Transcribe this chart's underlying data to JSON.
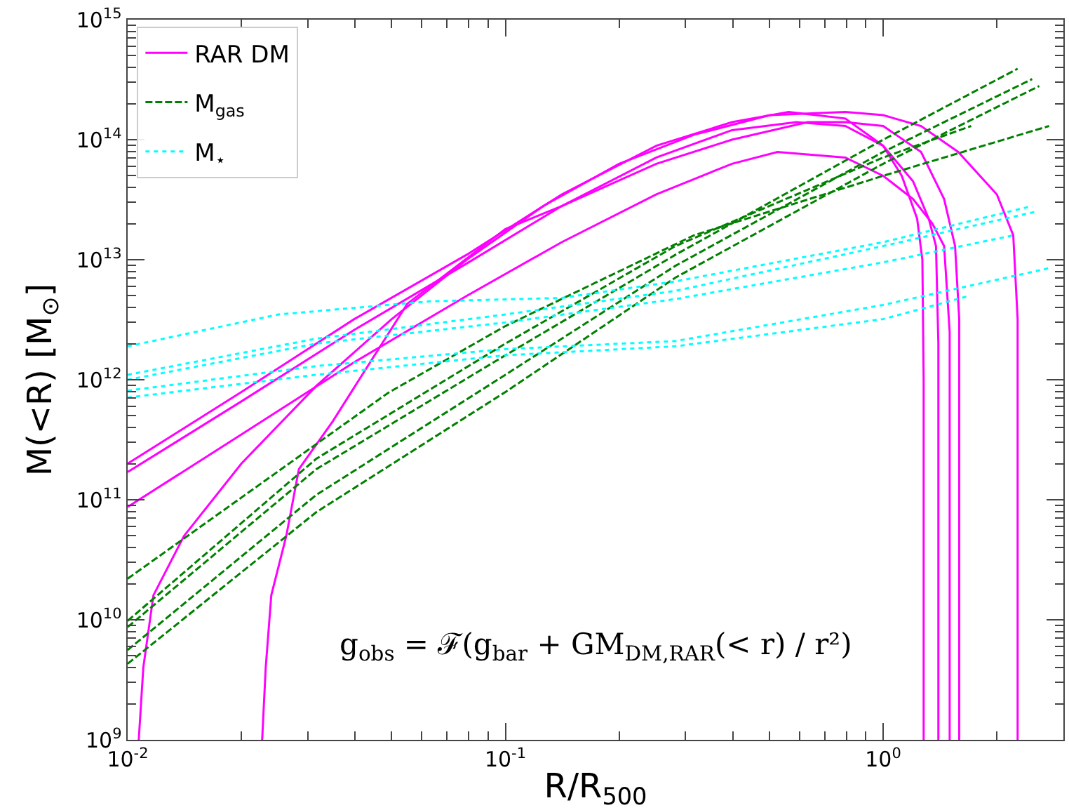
{
  "chart_data": {
    "type": "line",
    "xlabel": "R/R$_{500}$",
    "ylabel": "M(<R) [M$_{⊙}$]",
    "log": "xy",
    "grid": false,
    "legend": "top left",
    "marker": "none",
    "xlim": [
      0.01,
      3.0
    ],
    "xticks": [
      {
        "value": 0.01,
        "label": "10$^{-2}$"
      },
      {
        "value": 0.1,
        "label": "10$^{-1}$"
      },
      {
        "value": 1,
        "label": "10$^{0}$"
      }
    ],
    "ylim": [
      1000000000.0,
      1000000000000000.0
    ],
    "yticks": [
      {
        "value": 1000000000.0,
        "label": "10$^{9}$"
      },
      {
        "value": 10000000000.0,
        "label": "10$^{10}$"
      },
      {
        "value": 100000000000.0,
        "label": "10$^{11}$"
      },
      {
        "value": 1000000000000.0,
        "label": "10$^{12}$"
      },
      {
        "value": 10000000000000.0,
        "label": "10$^{13}$"
      },
      {
        "value": 100000000000000.0,
        "label": "10$^{14}$"
      },
      {
        "value": 1000000000000000.0,
        "label": "10$^{15}$"
      }
    ],
    "annotations": [
      "g$_{obs}$ = ℱ(g$_{bar}$ + GM$_{DM,RAR}$(< r) / r²)"
    ],
    "series": [
      {
        "name": "RAR DM",
        "color": "#ff00ff",
        "line_style": "solid",
        "x": [
          0.01,
          0.02,
          0.0398,
          0.079,
          0.141,
          0.251,
          0.398,
          0.562,
          0.794,
          1,
          1.12,
          1.23,
          1.27,
          1.28,
          1.28
        ],
        "values": [
          200000000000.0,
          790000000000.0,
          3200000000000.0,
          11000000000000.0,
          35000000000000.0,
          89000000000000.0,
          140000000000000.0,
          170000000000000.0,
          150000000000000.0,
          89000000000000.0,
          50000000000000.0,
          22000000000000.0,
          10000000000000.0,
          1000000000000.0,
          1000000000.0
        ]
      },
      {
        "color": "#ff00ff",
        "line_style": "solid",
        "x": [
          0.01,
          0.02,
          0.0398,
          0.079,
          0.141,
          0.251,
          0.398,
          0.589,
          0.794,
          1,
          1.2,
          1.32,
          1.38,
          1.4,
          1.4
        ],
        "values": [
          170000000000.0,
          660000000000.0,
          2600000000000.0,
          9300000000000.0,
          28000000000000.0,
          71000000000000.0,
          120000000000000.0,
          140000000000000.0,
          130000000000000.0,
          89000000000000.0,
          45000000000000.0,
          22000000000000.0,
          13000000000000.0,
          2000000000000.0,
          1000000000.0
        ]
      },
      {
        "color": "#ff00ff",
        "line_style": "solid",
        "x": [
          0.01,
          0.02,
          0.0398,
          0.079,
          0.141,
          0.251,
          0.398,
          0.525,
          0.794,
          1,
          1.2,
          1.35,
          1.45,
          1.5,
          1.5
        ],
        "values": [
          87000000000.0,
          350000000000.0,
          1400000000000.0,
          5000000000000.0,
          14000000000000.0,
          35000000000000.0,
          63000000000000.0,
          79000000000000.0,
          71000000000000.0,
          50000000000000.0,
          32000000000000.0,
          20000000000000.0,
          13000000000000.0,
          2500000000000.0,
          1000000000.0
        ]
      },
      {
        "color": "#ff00ff",
        "line_style": "solid",
        "x": [
          0.0107,
          0.011,
          0.0117,
          0.0141,
          0.02,
          0.0316,
          0.05,
          0.079,
          0.126,
          0.2,
          0.316,
          0.501,
          0.794,
          1,
          1.26,
          1.58,
          2.0,
          2.21,
          2.27,
          2.27
        ],
        "values": [
          1000000000.0,
          4000000000.0,
          16000000000.0,
          50000000000.0,
          200000000000.0,
          890000000000.0,
          3200000000000.0,
          10000000000000.0,
          28000000000000.0,
          63000000000000.0,
          110000000000000.0,
          160000000000000.0,
          170000000000000.0,
          160000000000000.0,
          130000000000000.0,
          79000000000000.0,
          35000000000000.0,
          16000000000000.0,
          3200000000000.0,
          1000000000.0
        ]
      },
      {
        "color": "#ff00ff",
        "line_style": "solid",
        "x": [
          0.0227,
          0.0232,
          0.024,
          0.0263,
          0.0284,
          0.0349,
          0.055,
          0.1,
          0.141,
          0.251,
          0.398,
          0.631,
          0.794,
          1,
          1.26,
          1.45,
          1.55,
          1.59,
          1.59
        ],
        "values": [
          1000000000.0,
          4000000000.0,
          16000000000.0,
          50000000000.0,
          180000000000.0,
          450000000000.0,
          4300000000000.0,
          18000000000000.0,
          28000000000000.0,
          63000000000000.0,
          100000000000000.0,
          140000000000000.0,
          140000000000000.0,
          130000000000000.0,
          79000000000000.0,
          32000000000000.0,
          13000000000000.0,
          3200000000000.0,
          1000000000.0
        ]
      },
      {
        "name": "M$_{gas}$",
        "color": "#008000",
        "line_style": "dashed",
        "x": [
          0.01,
          0.049,
          0.1,
          0.316,
          1,
          2.75
        ],
        "values": [
          22000000000.0,
          780000000000.0,
          2800000000000.0,
          16000000000000.0,
          50000000000000.0,
          130000000000000.0
        ]
      },
      {
        "color": "#008000",
        "line_style": "dashed",
        "x": [
          0.01,
          0.0316,
          0.1,
          0.282,
          1,
          1.71
        ],
        "values": [
          9800000000.0,
          220000000000.0,
          2000000000000.0,
          13000000000000.0,
          71000000000000.0,
          130000000000000.0
        ]
      },
      {
        "color": "#008000",
        "line_style": "dashed",
        "x": [
          0.01,
          0.0316,
          0.1,
          0.282,
          1,
          2.27
        ],
        "values": [
          8700000000.0,
          180000000000.0,
          1600000000000.0,
          11000000000000.0,
          100000000000000.0,
          390000000000000.0
        ]
      },
      {
        "color": "#008000",
        "line_style": "dashed",
        "x": [
          0.01,
          0.0316,
          0.1,
          0.282,
          1,
          2.48
        ],
        "values": [
          5600000000.0,
          110000000000.0,
          1100000000000.0,
          8900000000000.0,
          79000000000000.0,
          320000000000000.0
        ]
      },
      {
        "color": "#008000",
        "line_style": "dashed",
        "x": [
          0.01,
          0.0316,
          0.1,
          0.282,
          1,
          2.59
        ],
        "values": [
          4300000000.0,
          79000000000.0,
          790000000000.0,
          7100000000000.0,
          63000000000000.0,
          280000000000000.0
        ]
      },
      {
        "name": "M$_{⋆}$",
        "color": "#00ffff",
        "line_style": "dotted",
        "x": [
          0.01,
          0.0251,
          0.063,
          0.141,
          0.282,
          1,
          2.48
        ],
        "values": [
          1900000000000.0,
          3500000000000.0,
          4500000000000.0,
          4800000000000.0,
          6600000000000.0,
          14000000000000.0,
          28000000000000.0
        ]
      },
      {
        "color": "#00ffff",
        "line_style": "dotted",
        "x": [
          0.01,
          0.0316,
          0.1,
          0.282,
          1,
          2.52
        ],
        "values": [
          1100000000000.0,
          2200000000000.0,
          3500000000000.0,
          5500000000000.0,
          13000000000000.0,
          25000000000000.0
        ]
      },
      {
        "color": "#00ffff",
        "line_style": "dotted",
        "x": [
          0.01,
          0.0316,
          0.1,
          0.282,
          1,
          2.22
        ],
        "values": [
          1000000000000.0,
          2000000000000.0,
          3000000000000.0,
          4700000000000.0,
          9500000000000.0,
          16000000000000.0
        ]
      },
      {
        "color": "#00ffff",
        "line_style": "dotted",
        "x": [
          0.01,
          0.0316,
          0.1,
          0.282,
          1,
          2.75
        ],
        "values": [
          810000000000.0,
          1300000000000.0,
          1800000000000.0,
          2100000000000.0,
          4200000000000.0,
          8500000000000.0
        ]
      },
      {
        "color": "#00ffff",
        "line_style": "dotted",
        "x": [
          0.01,
          0.0316,
          0.1,
          0.282,
          1,
          1.69
        ],
        "values": [
          710000000000.0,
          1100000000000.0,
          1600000000000.0,
          1900000000000.0,
          3200000000000.0,
          5000000000000.0
        ]
      }
    ]
  }
}
